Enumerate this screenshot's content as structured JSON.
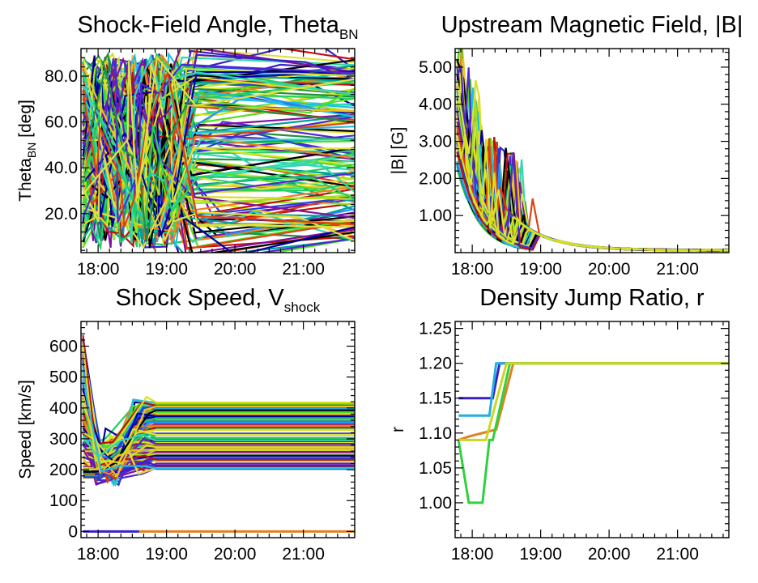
{
  "chart_data": [
    {
      "type": "line",
      "title": "Shock-Field Angle, Theta",
      "title_sub": "BN",
      "ylabel": "Theta",
      "ylabel_sub": "BN",
      "ylabel_suffix": " [deg]",
      "xlim": [
        17.75,
        21.75
      ],
      "ylim": [
        3,
        92
      ],
      "xticks": [
        18,
        19,
        20,
        21
      ],
      "xtick_labels": [
        "18:00",
        "19:00",
        "20:00",
        "21:00"
      ],
      "yticks": [
        20,
        40,
        60,
        80
      ],
      "ytick_labels": [
        "20.0",
        "40.0",
        "60.0",
        "80.0"
      ],
      "series_count": 150,
      "profile": "theta",
      "grid": false
    },
    {
      "type": "line",
      "title": "Upstream Magnetic Field, |B|",
      "title_sub": "",
      "ylabel": "|B| [G]",
      "ylabel_sub": "",
      "ylabel_suffix": "",
      "xlim": [
        17.75,
        21.75
      ],
      "ylim": [
        0,
        5.5
      ],
      "xticks": [
        18,
        19,
        20,
        21
      ],
      "xtick_labels": [
        "18:00",
        "19:00",
        "20:00",
        "21:00"
      ],
      "yticks": [
        1,
        2,
        3,
        4,
        5
      ],
      "ytick_labels": [
        "1.00",
        "2.00",
        "3.00",
        "4.00",
        "5.00"
      ],
      "series_count": 120,
      "profile": "bfield",
      "grid": false
    },
    {
      "type": "line",
      "title": "Shock Speed, V",
      "title_sub": "shock",
      "ylabel": "Speed [km/s]",
      "ylabel_sub": "",
      "ylabel_suffix": "",
      "xlim": [
        17.75,
        21.75
      ],
      "ylim": [
        -20,
        680
      ],
      "xticks": [
        18,
        19,
        20,
        21
      ],
      "xtick_labels": [
        "18:00",
        "19:00",
        "20:00",
        "21:00"
      ],
      "yticks": [
        0,
        100,
        200,
        300,
        400,
        500,
        600
      ],
      "ytick_labels": [
        "0",
        "100",
        "200",
        "300",
        "400",
        "500",
        "600"
      ],
      "series_count": 140,
      "profile": "speed",
      "grid": false
    },
    {
      "type": "line",
      "title": "Density Jump Ratio, r",
      "title_sub": "",
      "ylabel": "r",
      "ylabel_sub": "",
      "ylabel_suffix": "",
      "xlim": [
        17.75,
        21.75
      ],
      "ylim": [
        0.95,
        1.26
      ],
      "xticks": [
        18,
        19,
        20,
        21
      ],
      "xtick_labels": [
        "18:00",
        "19:00",
        "20:00",
        "21:00"
      ],
      "yticks": [
        1.0,
        1.05,
        1.1,
        1.15,
        1.2,
        1.25
      ],
      "ytick_labels": [
        "1.00",
        "1.05",
        "1.10",
        "1.15",
        "1.20",
        "1.25"
      ],
      "profile": "ratio",
      "grid": false,
      "series": [
        {
          "color": "#3a20c8",
          "x": [
            17.8,
            18.3,
            18.4,
            18.85
          ],
          "y": [
            1.15,
            1.15,
            1.2,
            1.2
          ]
        },
        {
          "color": "#20b0e0",
          "x": [
            17.8,
            18.25,
            18.35,
            21.75
          ],
          "y": [
            1.125,
            1.125,
            1.2,
            1.2
          ]
        },
        {
          "color": "#e08020",
          "x": [
            17.8,
            17.95,
            18.35,
            18.6,
            21.75
          ],
          "y": [
            1.09,
            1.095,
            1.105,
            1.2,
            1.2
          ]
        },
        {
          "color": "#30d040",
          "x": [
            17.8,
            17.95,
            18.05,
            18.15,
            18.25,
            18.3,
            18.55,
            21.75
          ],
          "y": [
            1.09,
            1.0,
            1.0,
            1.0,
            1.09,
            1.09,
            1.2,
            1.2
          ]
        },
        {
          "color": "#c8d820",
          "x": [
            17.8,
            18.2,
            18.5,
            21.75
          ],
          "y": [
            1.09,
            1.09,
            1.2,
            1.2
          ]
        }
      ]
    }
  ]
}
